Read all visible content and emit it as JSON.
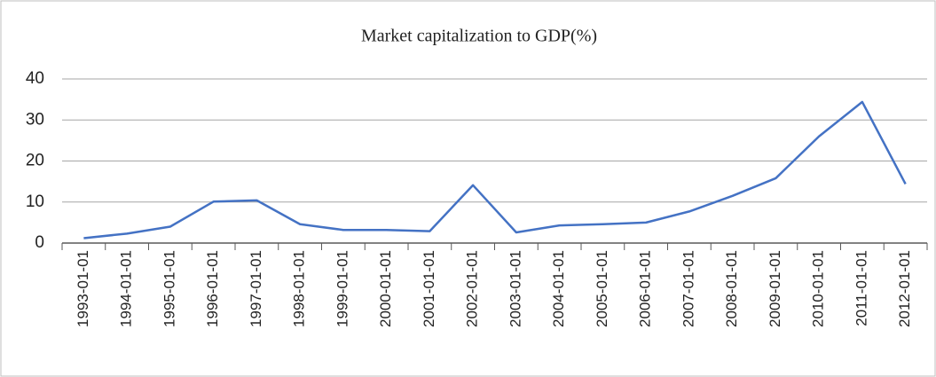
{
  "chart_data": {
    "type": "line",
    "title": "Market capitalization to GDP(%)",
    "categories": [
      "1993-01-01",
      "1994-01-01",
      "1995-01-01",
      "1996-01-01",
      "1997-01-01",
      "1998-01-01",
      "1999-01-01",
      "2000-01-01",
      "2001-01-01",
      "2002-01-01",
      "2003-01-01",
      "2004-01-01",
      "2005-01-01",
      "2006-01-01",
      "2007-01-01",
      "2008-01-01",
      "2009-01-01",
      "2010-01-01",
      "2011-01-01",
      "2012-01-01"
    ],
    "values": [
      1.2,
      2.3,
      4.0,
      10.1,
      10.4,
      4.6,
      3.2,
      3.2,
      2.9,
      14.1,
      2.6,
      4.3,
      4.6,
      5.0,
      7.7,
      11.5,
      15.8,
      26.0,
      34.4,
      14.4
    ],
    "color": "#4472c4",
    "ylim": [
      0,
      40
    ],
    "yticks": [
      0,
      10,
      20,
      30,
      40
    ],
    "grid": true
  }
}
